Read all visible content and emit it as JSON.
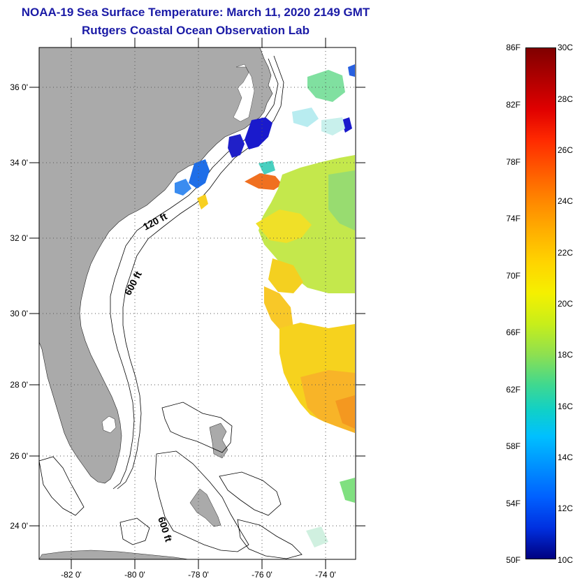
{
  "header": {
    "title": "NOAA-19 Sea Surface Temperature:  March 11, 2020 2149 GMT",
    "subtitle": "Rutgers Coastal Ocean Observation Lab"
  },
  "map": {
    "lat_labels": [
      "36 0'",
      "34 0'",
      "32 0'",
      "30 0'",
      "28 0'",
      "26 0'",
      "24 0'"
    ],
    "lon_labels": [
      "-82 0'",
      "-80 0'",
      "-78 0'",
      "-76 0'",
      "-74 0'"
    ],
    "contour_labels": [
      "120 ft",
      "600 ft",
      "600 ft"
    ],
    "land_color": "#aaaaaa",
    "grid_style": "dotted"
  },
  "colorbar": {
    "fahrenheit": [
      "86F",
      "82F",
      "78F",
      "74F",
      "70F",
      "66F",
      "62F",
      "58F",
      "54F",
      "50F"
    ],
    "celsius": [
      "30C",
      "28C",
      "26C",
      "24C",
      "22C",
      "20C",
      "18C",
      "16C",
      "14C",
      "12C",
      "10C"
    ]
  }
}
